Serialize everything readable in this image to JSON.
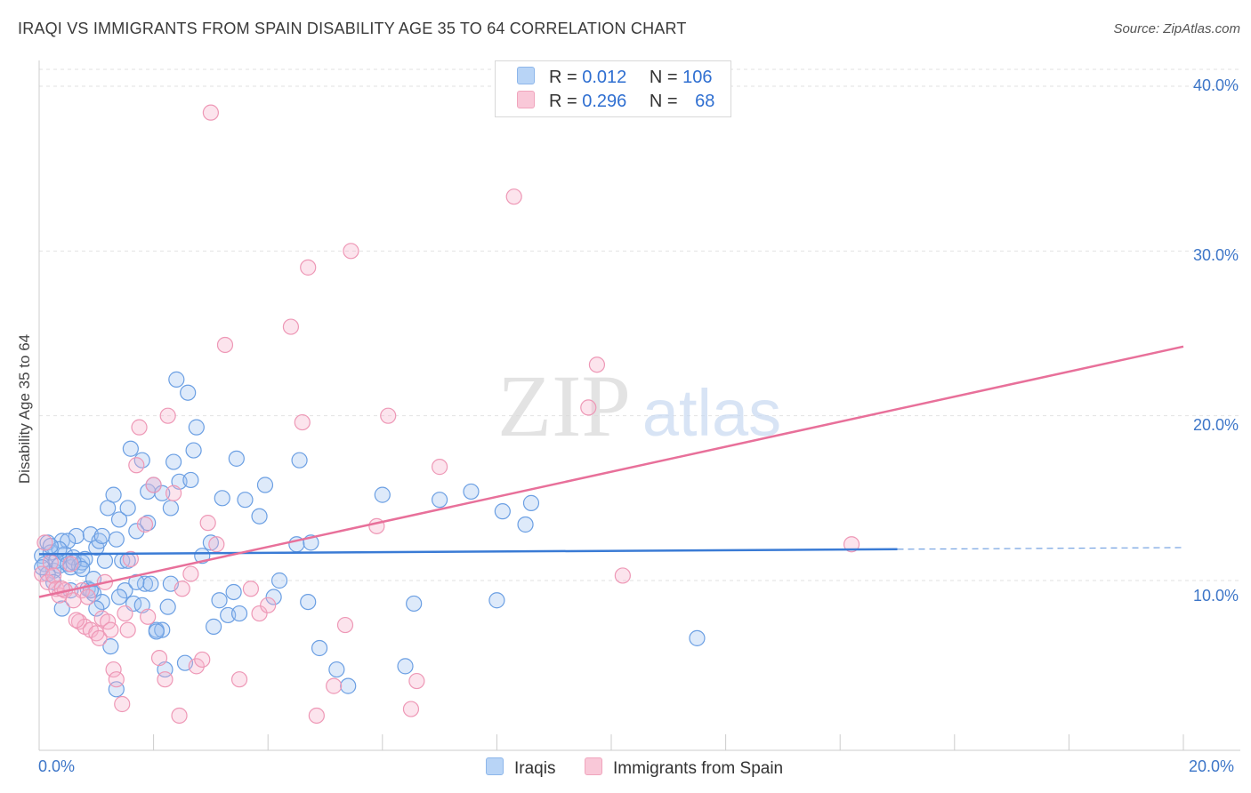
{
  "title": "IRAQI VS IMMIGRANTS FROM SPAIN DISABILITY AGE 35 TO 64 CORRELATION CHART",
  "source": "Source: ZipAtlas.com",
  "watermark": {
    "zip": "ZIP",
    "atlas": "atlas"
  },
  "legend": {
    "r_label": "R =",
    "n_label": "N =",
    "series1": {
      "r": "0.012",
      "n": "106"
    },
    "series2": {
      "r": "0.296",
      "n": "68"
    }
  },
  "chart_data": {
    "type": "scatter",
    "title": "IRAQI VS IMMIGRANTS FROM SPAIN DISABILITY AGE 35 TO 64 CORRELATION CHART",
    "xlabel": "",
    "ylabel": "Disability Age 35 to 64",
    "xlim": [
      0,
      20
    ],
    "ylim": [
      0,
      42
    ],
    "x_tick_labels": [
      "0.0%",
      "20.0%"
    ],
    "y_ticks": [
      10,
      20,
      30,
      40
    ],
    "y_tick_labels": [
      "10.0%",
      "20.0%",
      "30.0%",
      "40.0%"
    ],
    "legend_position": "top-center",
    "colors": {
      "Iraqis": "#3a7bd5",
      "Immigrants from Spain": "#e8709a"
    },
    "series": [
      {
        "name": "Iraqis",
        "color": "#3a7bd5",
        "trend": {
          "x": [
            0,
            15
          ],
          "y": [
            11.6,
            11.9
          ],
          "dashed_to": [
            20,
            12.0
          ]
        },
        "points": [
          [
            0.05,
            11.5
          ],
          [
            0.1,
            11.0
          ],
          [
            0.15,
            12.3
          ],
          [
            0.2,
            11.7
          ],
          [
            0.25,
            10.6
          ],
          [
            0.3,
            11.2
          ],
          [
            0.35,
            10.9
          ],
          [
            0.4,
            12.4
          ],
          [
            0.45,
            11.6
          ],
          [
            0.5,
            11.0
          ],
          [
            0.55,
            10.8
          ],
          [
            0.6,
            11.4
          ],
          [
            0.65,
            12.7
          ],
          [
            0.7,
            10.9
          ],
          [
            0.75,
            11.1
          ],
          [
            0.8,
            11.3
          ],
          [
            0.85,
            9.5
          ],
          [
            0.9,
            12.8
          ],
          [
            0.95,
            9.2
          ],
          [
            1.0,
            12.0
          ],
          [
            1.05,
            12.4
          ],
          [
            1.1,
            12.7
          ],
          [
            1.15,
            11.2
          ],
          [
            1.2,
            14.4
          ],
          [
            1.3,
            15.2
          ],
          [
            1.35,
            12.5
          ],
          [
            1.4,
            13.7
          ],
          [
            1.45,
            11.2
          ],
          [
            1.5,
            9.4
          ],
          [
            1.55,
            14.4
          ],
          [
            1.6,
            18.0
          ],
          [
            1.65,
            8.6
          ],
          [
            1.7,
            13.0
          ],
          [
            1.8,
            17.3
          ],
          [
            1.85,
            9.8
          ],
          [
            1.9,
            15.4
          ],
          [
            1.95,
            9.8
          ],
          [
            2.0,
            15.8
          ],
          [
            2.05,
            7.0
          ],
          [
            2.15,
            7.0
          ],
          [
            2.25,
            8.4
          ],
          [
            2.3,
            14.4
          ],
          [
            2.35,
            17.2
          ],
          [
            2.4,
            22.2
          ],
          [
            2.45,
            16.0
          ],
          [
            2.6,
            21.4
          ],
          [
            2.7,
            17.9
          ],
          [
            2.75,
            19.3
          ],
          [
            2.85,
            11.5
          ],
          [
            3.05,
            7.2
          ],
          [
            3.15,
            8.8
          ],
          [
            3.3,
            7.9
          ],
          [
            3.45,
            17.4
          ],
          [
            3.6,
            14.9
          ],
          [
            3.85,
            13.9
          ],
          [
            3.95,
            15.8
          ],
          [
            4.1,
            9.0
          ],
          [
            4.2,
            10.0
          ],
          [
            4.5,
            12.2
          ],
          [
            4.55,
            17.3
          ],
          [
            4.75,
            12.3
          ],
          [
            4.9,
            5.9
          ],
          [
            5.2,
            4.6
          ],
          [
            5.4,
            3.6
          ],
          [
            6.0,
            15.2
          ],
          [
            6.4,
            4.8
          ],
          [
            6.55,
            8.6
          ],
          [
            7.0,
            14.9
          ],
          [
            7.55,
            15.4
          ],
          [
            8.0,
            8.8
          ],
          [
            8.1,
            14.2
          ],
          [
            8.5,
            13.4
          ],
          [
            8.6,
            14.7
          ],
          [
            11.5,
            6.5
          ],
          [
            1.1,
            8.7
          ],
          [
            0.9,
            9.4
          ],
          [
            1.7,
            9.9
          ],
          [
            2.2,
            4.6
          ],
          [
            3.5,
            8.0
          ],
          [
            0.15,
            10.4
          ],
          [
            0.4,
            8.3
          ],
          [
            0.25,
            9.9
          ],
          [
            0.55,
            9.4
          ],
          [
            1.8,
            8.5
          ],
          [
            2.05,
            6.9
          ],
          [
            0.95,
            10.1
          ],
          [
            1.4,
            9.0
          ],
          [
            0.5,
            12.4
          ],
          [
            2.15,
            15.3
          ],
          [
            1.9,
            13.5
          ],
          [
            0.6,
            11.1
          ],
          [
            2.55,
            5.0
          ],
          [
            1.25,
            6.0
          ],
          [
            1.0,
            8.3
          ],
          [
            2.65,
            16.1
          ],
          [
            1.35,
            3.4
          ],
          [
            3.0,
            12.3
          ],
          [
            4.7,
            8.7
          ],
          [
            3.4,
            9.3
          ],
          [
            3.2,
            15.0
          ],
          [
            0.05,
            10.8
          ],
          [
            0.35,
            11.9
          ],
          [
            0.75,
            10.7
          ],
          [
            2.3,
            9.8
          ],
          [
            1.55,
            11.2
          ],
          [
            0.2,
            12.1
          ]
        ]
      },
      {
        "name": "Immigrants from Spain",
        "color": "#e8709a",
        "trend": {
          "x": [
            0,
            20
          ],
          "y": [
            9.0,
            24.2
          ]
        },
        "points": [
          [
            0.05,
            10.4
          ],
          [
            0.1,
            12.3
          ],
          [
            0.15,
            9.9
          ],
          [
            0.2,
            11.1
          ],
          [
            0.25,
            10.3
          ],
          [
            0.3,
            9.5
          ],
          [
            0.35,
            9.1
          ],
          [
            0.45,
            9.4
          ],
          [
            0.55,
            11.0
          ],
          [
            0.6,
            8.8
          ],
          [
            0.7,
            7.5
          ],
          [
            0.75,
            9.4
          ],
          [
            0.8,
            7.2
          ],
          [
            0.85,
            9.0
          ],
          [
            0.9,
            7.0
          ],
          [
            1.0,
            6.8
          ],
          [
            1.05,
            6.5
          ],
          [
            1.1,
            7.7
          ],
          [
            1.2,
            7.5
          ],
          [
            1.25,
            7.0
          ],
          [
            1.3,
            4.6
          ],
          [
            1.35,
            4.0
          ],
          [
            1.45,
            2.5
          ],
          [
            1.5,
            8.0
          ],
          [
            1.55,
            7.0
          ],
          [
            1.6,
            11.3
          ],
          [
            1.7,
            17.0
          ],
          [
            1.75,
            19.3
          ],
          [
            1.85,
            13.4
          ],
          [
            1.9,
            7.8
          ],
          [
            2.0,
            15.8
          ],
          [
            2.1,
            5.3
          ],
          [
            2.2,
            4.0
          ],
          [
            2.25,
            20.0
          ],
          [
            2.35,
            15.3
          ],
          [
            2.45,
            1.8
          ],
          [
            2.5,
            9.5
          ],
          [
            2.65,
            10.4
          ],
          [
            2.75,
            4.8
          ],
          [
            2.85,
            5.2
          ],
          [
            2.95,
            13.5
          ],
          [
            3.1,
            12.2
          ],
          [
            3.25,
            24.3
          ],
          [
            3.5,
            4.0
          ],
          [
            3.7,
            9.5
          ],
          [
            3.85,
            8.0
          ],
          [
            4.0,
            8.5
          ],
          [
            4.4,
            25.4
          ],
          [
            4.6,
            19.6
          ],
          [
            4.7,
            29.0
          ],
          [
            4.85,
            1.8
          ],
          [
            5.15,
            3.6
          ],
          [
            5.35,
            7.3
          ],
          [
            5.45,
            30.0
          ],
          [
            5.9,
            13.3
          ],
          [
            6.1,
            20.0
          ],
          [
            6.5,
            2.2
          ],
          [
            6.6,
            3.9
          ],
          [
            7.0,
            16.9
          ],
          [
            8.3,
            33.3
          ],
          [
            9.6,
            20.5
          ],
          [
            9.75,
            23.1
          ],
          [
            10.2,
            10.3
          ],
          [
            14.2,
            12.2
          ],
          [
            3.0,
            38.4
          ],
          [
            0.65,
            7.6
          ],
          [
            1.15,
            9.9
          ],
          [
            0.4,
            9.5
          ]
        ]
      }
    ]
  }
}
